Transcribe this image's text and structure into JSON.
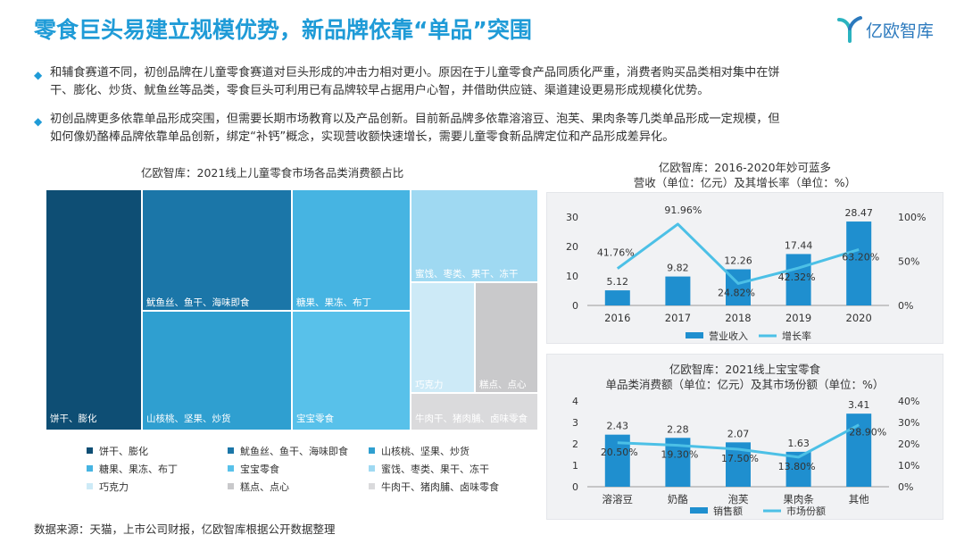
{
  "title": "零食巨头易建立规模优势，新品牌依靠“单品”突围",
  "logo": {
    "text": "亿欧智库"
  },
  "bullets": [
    {
      "line1": "和辅食赛道不同，初创品牌在儿童零食赛道对巨头形成的冲击力相对更小。原因在于儿童零食产品同质化严重，消费者购买品类相对集中在饼",
      "line2": "干、膨化、炒货、魷鱼丝等品类，零食巨头可利用已有品牌较早占据用户心智，并借助供应链、渠道建设更易形成规模化优势。"
    },
    {
      "line1": "初创品牌更多依靠单品形成突围，但需要长期市场教育以及产品创新。目前新品牌多依靠溶溶豆、泡芙、果肉条等几类单品形成一定规模，但",
      "line2": "如何像奶酪棒品牌依靠单品创新，绑定“补钙”概念，实现营收额快速增长，需要儿童零食新品牌定位和产品形成差异化。"
    }
  ],
  "source": "数据来源：天猫，上市公司财报，亿欧智库根据公开数据整理",
  "chart_data": [
    {
      "type": "treemap",
      "title": "亿欧智库：2021线上儿童零食市场各品类消费额占比",
      "categories": [
        "饼干、膨化",
        "魷鱼丝、鱼干、海味即食",
        "山核桃、坚果、炒货",
        "糖果、果冻、布丁",
        "宝宝零食",
        "蜜饯、枣类、果干、冻干",
        "巧克力",
        "糕点、点心",
        "牛肉干、猪肉脯、卤味零食"
      ],
      "tile_labels": [
        "饼干、膨化",
        "魷鱼丝、鱼干、海味即食",
        "山核桃、坚果、炒货",
        "糖果、果冻、布丁",
        "宝宝零食",
        "蜜饯、枣类、果干、冻干",
        "巧克力",
        "糕点、点心",
        "牛肉干、猪肉脯、卤味零食"
      ],
      "values": [
        19.5,
        15.2,
        14.1,
        14.0,
        12.7,
        7.5,
        4.1,
        4.8,
        3.1
      ],
      "colors": [
        "#0e4e74",
        "#1b76a8",
        "#2f9fd0",
        "#46b4e2",
        "#58c1ea",
        "#9fd9f2",
        "#cdeaf7",
        "#c9c9cb",
        "#dadadc"
      ]
    },
    {
      "type": "bar+line",
      "title_line1": "亿欧智库：2016-2020年妙可蓝多",
      "title_line2": "营收（单位：亿元）及其增长率（单位：%）",
      "x": [
        "2016",
        "2017",
        "2018",
        "2019",
        "2020"
      ],
      "series": [
        {
          "name": "营业收入",
          "values": [
            5.12,
            9.82,
            12.26,
            17.44,
            28.47
          ],
          "labels": [
            "5.12",
            "9.82",
            "12.26",
            "17.44",
            "28.47"
          ]
        },
        {
          "name": "增长率",
          "values": [
            41.76,
            91.96,
            24.82,
            42.32,
            63.2
          ],
          "labels": [
            "41.76%",
            "91.96%",
            "24.82%",
            "42.32%",
            "63.20%"
          ]
        }
      ],
      "y_left": {
        "min": 0,
        "max": 30,
        "ticks": [
          "0",
          "10",
          "20",
          "30"
        ]
      },
      "y_right": {
        "min": 0,
        "max": 100,
        "ticks": [
          "0%",
          "50%",
          "100%"
        ]
      }
    },
    {
      "type": "bar+line",
      "title_line1": "亿欧智库：2021线上宝宝零食",
      "title_line2": "单品类消费额（单位：亿元）及其市场份额（单位：%）",
      "x": [
        "溶溶豆",
        "奶酪",
        "泡芙",
        "果肉条",
        "其他"
      ],
      "series": [
        {
          "name": "销售额",
          "values": [
            2.43,
            2.28,
            2.07,
            1.63,
            3.41
          ],
          "labels": [
            "2.43",
            "2.28",
            "2.07",
            "1.63",
            "3.41"
          ]
        },
        {
          "name": "市场份额",
          "values": [
            20.5,
            19.3,
            17.5,
            13.8,
            28.9
          ],
          "labels": [
            "20.50%",
            "19.30%",
            "17.50%",
            "13.80%",
            "28.90%"
          ]
        }
      ],
      "y_left": {
        "min": 0,
        "max": 4,
        "ticks": [
          "0",
          "1",
          "2",
          "3",
          "4"
        ]
      },
      "y_right": {
        "min": 0,
        "max": 40,
        "ticks": [
          "0%",
          "10%",
          "20%",
          "30%",
          "40%"
        ]
      }
    }
  ]
}
